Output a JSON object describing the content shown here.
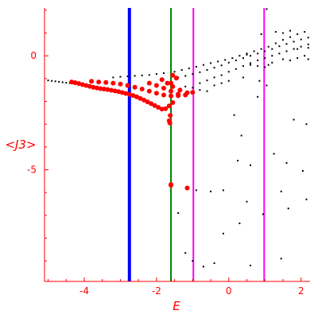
{
  "chart_data": {
    "type": "scatter",
    "xlabel": "E",
    "ylabel": "<J3>",
    "xlim": [
      -5.1,
      2.25
    ],
    "ylim": [
      -9.9,
      2.1
    ],
    "x_ticks": [
      -4,
      -2,
      0,
      2
    ],
    "y_ticks": [
      0,
      -5
    ],
    "x_tick_labels": [
      "-4",
      "-2",
      "0",
      "2"
    ],
    "y_tick_labels": [
      "0",
      "-5"
    ],
    "colors": {
      "axis": "#ff0000",
      "black_points": "#000000",
      "red_points": "#ff0000",
      "vline_blue": "#0000ff",
      "vline_green": "#008000",
      "vline_magenta": "#ff00ff"
    },
    "vertical_lines": [
      {
        "x": -2.75,
        "color": "#0000ff"
      },
      {
        "x": -1.6,
        "color": "#008000"
      },
      {
        "x": -0.98,
        "color": "#ff00ff"
      },
      {
        "x": 0.98,
        "color": "#ff00ff"
      }
    ],
    "series": [
      {
        "marker": "small-dot",
        "color": "#000000",
        "points": [
          [
            -5.0,
            -1.08
          ],
          [
            -4.9,
            -1.1
          ],
          [
            -4.8,
            -1.12
          ],
          [
            -4.7,
            -1.14
          ],
          [
            -4.6,
            -1.16
          ],
          [
            -4.5,
            -1.18
          ],
          [
            -4.4,
            -1.2
          ],
          [
            -4.3,
            -1.22
          ],
          [
            -3.2,
            -0.95
          ],
          [
            -3.0,
            -0.92
          ],
          [
            -2.8,
            -0.9
          ],
          [
            -2.6,
            -0.88
          ],
          [
            -2.4,
            -0.86
          ],
          [
            -2.2,
            -0.84
          ],
          [
            -2.0,
            -0.8
          ],
          [
            -1.8,
            -0.76
          ],
          [
            -1.5,
            -0.7
          ],
          [
            -1.3,
            -0.62
          ],
          [
            -1.1,
            -0.55
          ],
          [
            -0.9,
            -0.48
          ],
          [
            -0.7,
            -0.4
          ],
          [
            -0.5,
            -0.32
          ],
          [
            -0.3,
            -0.25
          ],
          [
            -0.1,
            -0.18
          ],
          [
            0.1,
            -0.1
          ],
          [
            0.3,
            0.0
          ],
          [
            0.5,
            0.1
          ],
          [
            0.7,
            0.2
          ],
          [
            0.9,
            0.3
          ],
          [
            1.1,
            0.4
          ],
          [
            1.3,
            0.55
          ],
          [
            1.5,
            0.7
          ],
          [
            1.7,
            0.82
          ],
          [
            1.9,
            0.95
          ],
          [
            2.1,
            1.05
          ],
          [
            -1.4,
            -0.95
          ],
          [
            -1.2,
            -0.88
          ],
          [
            -1.0,
            -0.8
          ],
          [
            -0.8,
            -0.72
          ],
          [
            -0.6,
            -0.62
          ],
          [
            -0.4,
            -0.52
          ],
          [
            -0.2,
            -0.42
          ],
          [
            0.0,
            -0.3
          ],
          [
            0.2,
            -0.2
          ],
          [
            0.4,
            -0.1
          ],
          [
            0.6,
            0.0
          ],
          [
            0.8,
            0.1
          ],
          [
            1.0,
            0.2
          ],
          [
            1.2,
            0.3
          ],
          [
            1.4,
            0.42
          ],
          [
            1.6,
            0.52
          ],
          [
            1.8,
            0.62
          ],
          [
            2.0,
            0.72
          ],
          [
            2.2,
            0.8
          ],
          [
            -0.8,
            -1.2
          ],
          [
            -0.6,
            -1.08
          ],
          [
            -0.4,
            -0.95
          ],
          [
            -0.2,
            -0.85
          ],
          [
            0.0,
            -0.7
          ],
          [
            0.2,
            -0.58
          ],
          [
            0.4,
            -0.45
          ],
          [
            0.6,
            -0.32
          ],
          [
            0.8,
            -0.2
          ],
          [
            1.0,
            -0.1
          ],
          [
            1.2,
            0.0
          ],
          [
            1.4,
            0.1
          ],
          [
            1.6,
            0.2
          ],
          [
            1.8,
            0.3
          ],
          [
            2.0,
            0.4
          ],
          [
            2.2,
            0.5
          ],
          [
            -1.2,
            -1.35
          ],
          [
            -1.0,
            -1.4
          ],
          [
            -0.8,
            -1.5
          ],
          [
            -0.6,
            -1.55
          ],
          [
            -0.4,
            -1.3
          ],
          [
            -0.2,
            -1.2
          ],
          [
            0.0,
            -1.1
          ],
          [
            0.4,
            -0.95
          ],
          [
            0.6,
            -0.4
          ],
          [
            0.8,
            -0.45
          ],
          [
            1.2,
            -0.3
          ],
          [
            1.5,
            -0.15
          ],
          [
            1.7,
            -0.2
          ],
          [
            1.9,
            -0.1
          ],
          [
            2.1,
            0.0
          ],
          [
            2.2,
            -0.15
          ],
          [
            1.0,
            -0.5
          ],
          [
            1.1,
            -0.4
          ],
          [
            0.5,
            0.05
          ],
          [
            1.5,
            1.0
          ],
          [
            1.7,
            1.1
          ],
          [
            1.3,
            1.05
          ],
          [
            0.9,
            0.95
          ],
          [
            1.05,
            2.05
          ],
          [
            1.9,
            0.3
          ],
          [
            2.2,
            0.35
          ],
          [
            0.85,
            -1.1
          ],
          [
            1.05,
            -1.3
          ],
          [
            0.8,
            -1.8
          ],
          [
            0.15,
            -2.6
          ],
          [
            1.8,
            -2.8
          ],
          [
            2.15,
            -3.0
          ],
          [
            0.35,
            -3.5
          ],
          [
            1.25,
            -4.3
          ],
          [
            0.25,
            -4.6
          ],
          [
            0.6,
            -4.8
          ],
          [
            1.6,
            -4.7
          ],
          [
            2.05,
            -5.05
          ],
          [
            1.45,
            -5.95
          ],
          [
            -0.9,
            -5.9
          ],
          [
            -0.5,
            -5.95
          ],
          [
            -0.15,
            -5.9
          ],
          [
            0.5,
            -6.4
          ],
          [
            2.15,
            -6.3
          ],
          [
            -1.4,
            -6.9
          ],
          [
            0.95,
            -6.95
          ],
          [
            1.65,
            -6.7
          ],
          [
            -0.15,
            -7.8
          ],
          [
            0.3,
            -7.35
          ],
          [
            -1.0,
            -9.0
          ],
          [
            -1.2,
            -8.65
          ],
          [
            -0.7,
            -9.25
          ],
          [
            -0.4,
            -9.1
          ],
          [
            1.45,
            -8.9
          ],
          [
            0.6,
            -9.2
          ]
        ]
      },
      {
        "marker": "red-dot",
        "color": "#ff0000",
        "points": [
          [
            -4.35,
            -1.15
          ],
          [
            -4.25,
            -1.18
          ],
          [
            -4.15,
            -1.22
          ],
          [
            -4.05,
            -1.26
          ],
          [
            -3.95,
            -1.3
          ],
          [
            -3.85,
            -1.34
          ],
          [
            -3.75,
            -1.38
          ],
          [
            -3.65,
            -1.41
          ],
          [
            -3.55,
            -1.44
          ],
          [
            -3.45,
            -1.46
          ],
          [
            -3.35,
            -1.48
          ],
          [
            -3.25,
            -1.51
          ],
          [
            -3.15,
            -1.54
          ],
          [
            -3.05,
            -1.57
          ],
          [
            -2.95,
            -1.61
          ],
          [
            -2.85,
            -1.65
          ],
          [
            -2.75,
            -1.69
          ],
          [
            -2.65,
            -1.74
          ],
          [
            -2.55,
            -1.8
          ],
          [
            -2.45,
            -1.87
          ],
          [
            -2.35,
            -1.94
          ],
          [
            -2.25,
            -2.02
          ],
          [
            -2.15,
            -2.1
          ],
          [
            -2.05,
            -2.18
          ],
          [
            -1.95,
            -2.26
          ],
          [
            -1.85,
            -2.34
          ],
          [
            -1.75,
            -2.32
          ],
          [
            -1.65,
            -2.2
          ],
          [
            -1.55,
            -2.05
          ],
          [
            -3.8,
            -1.12
          ],
          [
            -3.6,
            -1.15
          ],
          [
            -3.4,
            -1.17
          ],
          [
            -3.2,
            -1.2
          ],
          [
            -3.0,
            -1.24
          ],
          [
            -2.8,
            -1.3
          ],
          [
            -2.6,
            -1.38
          ],
          [
            -2.4,
            -1.46
          ],
          [
            -2.2,
            -1.55
          ],
          [
            -2.0,
            -1.64
          ],
          [
            -1.8,
            -1.72
          ],
          [
            -1.6,
            -1.76
          ],
          [
            -1.4,
            -1.75
          ],
          [
            -2.2,
            -1.2
          ],
          [
            -2.0,
            -1.3
          ],
          [
            -1.8,
            -1.42
          ],
          [
            -1.6,
            -1.55
          ],
          [
            -1.4,
            -1.68
          ],
          [
            -1.2,
            -1.72
          ],
          [
            -1.0,
            -1.6
          ],
          [
            -1.85,
            -1.05
          ],
          [
            -1.7,
            -1.2
          ],
          [
            -1.55,
            -1.35
          ],
          [
            -1.35,
            -1.5
          ],
          [
            -1.15,
            -1.62
          ],
          [
            -1.55,
            -0.85
          ],
          [
            -1.45,
            -0.98
          ],
          [
            -1.6,
            -1.2
          ],
          [
            -1.62,
            -2.62
          ],
          [
            -1.65,
            -2.85
          ],
          [
            -1.63,
            -2.95
          ],
          [
            -1.6,
            -5.65
          ],
          [
            -1.6,
            -5.68
          ],
          [
            -1.15,
            -5.8
          ]
        ]
      }
    ]
  }
}
